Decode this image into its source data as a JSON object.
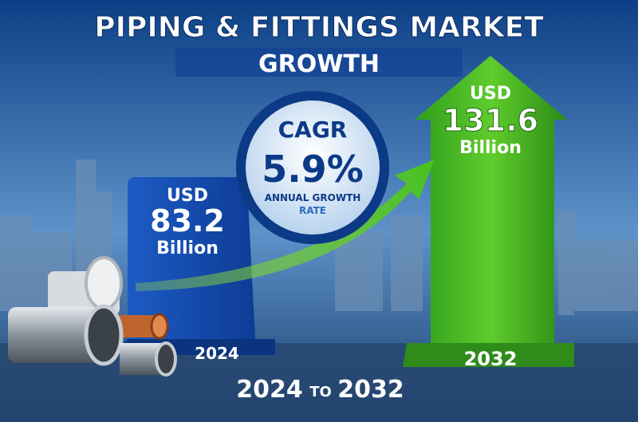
{
  "header": {
    "title": "PIPING & FITTINGS MARKET",
    "subtitle": "GROWTH"
  },
  "cagr": {
    "label": "CAGR",
    "value": "5.9%",
    "caption_1": "ANNUAL GROWTH",
    "caption_2": "RATE"
  },
  "start": {
    "currency": "USD",
    "amount": "83.2",
    "unit": "Billion",
    "year": "2024"
  },
  "end": {
    "currency": "USD",
    "amount": "131.6",
    "unit": "Billion",
    "year": "2032"
  },
  "footer": {
    "from": "2024",
    "joiner": "TO",
    "to": "2032"
  }
}
